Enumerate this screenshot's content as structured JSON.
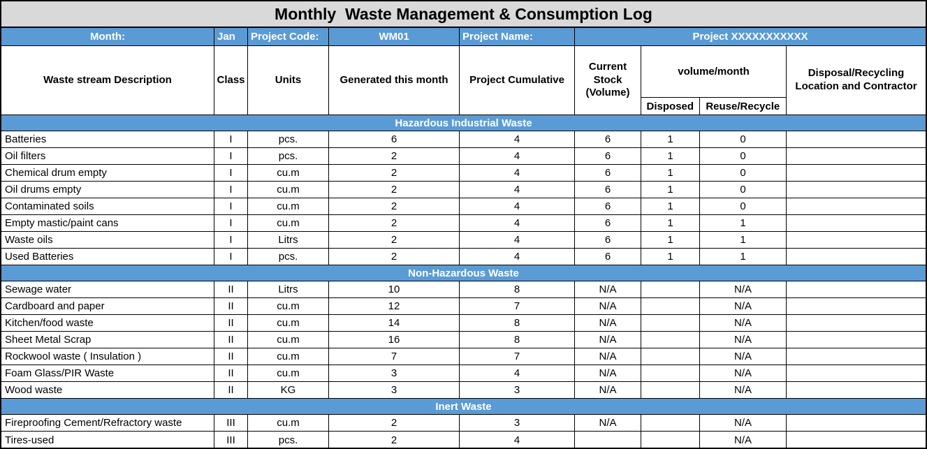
{
  "title": "Monthly  Waste Management & Consumption Log",
  "colors": {
    "header_blue": "#5b9bd5",
    "title_bg": "#d9d9d9",
    "border": "#000000",
    "text": "#000000",
    "header_text": "#ffffff"
  },
  "info_bar": {
    "month_label": "Month:",
    "month_value": "Jan",
    "project_code_label": "Project Code:",
    "project_code_value": "WM01",
    "project_name_label": "Project Name:",
    "project_name_value": "Project XXXXXXXXXXX"
  },
  "columns": {
    "description": "Waste stream Description",
    "class": "Class",
    "units": "Units",
    "generated": "Generated this month",
    "cumulative": "Project Cumulative",
    "current_stock": "Current Stock (Volume)",
    "volume_month": "volume/month",
    "disposed": "Disposed",
    "reuse": "Reuse/Recycle",
    "disposal_location": "Disposal/Recycling Location and Contractor"
  },
  "sections": [
    {
      "title": "Hazardous Industrial Waste",
      "rows": [
        [
          "Batteries",
          "I",
          "pcs.",
          "6",
          "4",
          "6",
          "1",
          "0",
          ""
        ],
        [
          "Oil filters",
          "I",
          "pcs.",
          "2",
          "4",
          "6",
          "1",
          "0",
          ""
        ],
        [
          "Chemical drum empty",
          "I",
          "cu.m",
          "2",
          "4",
          "6",
          "1",
          "0",
          ""
        ],
        [
          "Oil drums empty",
          "I",
          "cu.m",
          "2",
          "4",
          "6",
          "1",
          "0",
          ""
        ],
        [
          "Contaminated soils",
          "I",
          "cu.m",
          "2",
          "4",
          "6",
          "1",
          "0",
          ""
        ],
        [
          "Empty mastic/paint cans",
          "I",
          "cu.m",
          "2",
          "4",
          "6",
          "1",
          "1",
          ""
        ],
        [
          "Waste oils",
          "I",
          "Litrs",
          "2",
          "4",
          "6",
          "1",
          "1",
          ""
        ],
        [
          "Used Batteries",
          "I",
          "pcs.",
          "2",
          "4",
          "6",
          "1",
          "1",
          ""
        ]
      ]
    },
    {
      "title": "Non-Hazardous Waste",
      "rows": [
        [
          "Sewage water",
          "II",
          "Litrs",
          "10",
          "8",
          "N/A",
          "",
          "N/A",
          ""
        ],
        [
          "Cardboard and paper",
          "II",
          "cu.m",
          "12",
          "7",
          "N/A",
          "",
          "N/A",
          ""
        ],
        [
          "Kitchen/food waste",
          "II",
          "cu.m",
          "14",
          "8",
          "N/A",
          "",
          "N/A",
          ""
        ],
        [
          "Sheet Metal Scrap",
          "II",
          "cu.m",
          "16",
          "8",
          "N/A",
          "",
          "N/A",
          ""
        ],
        [
          "Rockwool waste ( Insulation )",
          "II",
          "cu.m",
          "7",
          "7",
          "N/A",
          "",
          "N/A",
          ""
        ],
        [
          "Foam Glass/PIR Waste",
          "II",
          "cu.m",
          "3",
          "4",
          "N/A",
          "",
          "N/A",
          ""
        ],
        [
          "Wood waste",
          "II",
          "KG",
          "3",
          "3",
          "N/A",
          "",
          "N/A",
          ""
        ]
      ]
    },
    {
      "title": "Inert Waste",
      "rows": [
        [
          "Fireproofing Cement/Refractory waste",
          "III",
          "cu.m",
          "2",
          "3",
          "N/A",
          "",
          "N/A",
          ""
        ],
        [
          "Tires-used",
          "III",
          "pcs.",
          "2",
          "4",
          "",
          "",
          "N/A",
          ""
        ]
      ]
    }
  ]
}
